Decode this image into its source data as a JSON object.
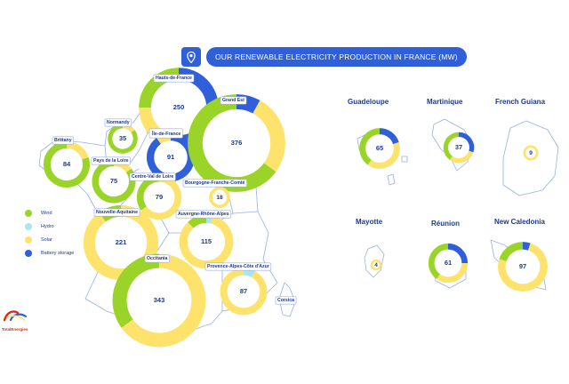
{
  "title": "OUR RENEWABLE ELECTRICITY PRODUCTION IN FRANCE (MW)",
  "icons": {
    "title": "map-pin-icon",
    "brand": "totalenergies-logo"
  },
  "brand": "TotalEnergies",
  "colors": {
    "Wind": "#9bd428",
    "Hydro": "#a7e7ef",
    "Solar": "#fde36c",
    "Battery storage": "#2f5fd9",
    "accent": "#2f5fd9",
    "map_outline": "#9aaee8",
    "label_text": "#1e3a8a"
  },
  "legend": [
    {
      "label": "Wind",
      "color": "#9bd428"
    },
    {
      "label": "Hydro",
      "color": "#a7e7ef"
    },
    {
      "label": "Solar",
      "color": "#fde36c"
    },
    {
      "label": "Battery storage",
      "color": "#2f5fd9"
    }
  ],
  "chart_data": {
    "type": "pie",
    "title": "OUR RENEWABLE ELECTRICITY PRODUCTION IN FRANCE (MW)",
    "series_names": [
      "Wind",
      "Hydro",
      "Solar",
      "Battery storage"
    ],
    "regions": [
      {
        "name": "Hauts-de-France",
        "total": 250,
        "shares": {
          "Wind": 0.25,
          "Solar": 0.25,
          "Battery storage": 0.5
        }
      },
      {
        "name": "Normandy",
        "total": 35,
        "shares": {
          "Wind": 0.85,
          "Solar": 0.15
        }
      },
      {
        "name": "Brittany",
        "total": 84,
        "shares": {
          "Wind": 0.8,
          "Solar": 0.2
        }
      },
      {
        "name": "Île-de-France",
        "total": 91,
        "shares": {
          "Solar": 0.1,
          "Battery storage": 0.9
        }
      },
      {
        "name": "Grand Est",
        "total": 376,
        "shares": {
          "Battery storage": 0.08,
          "Solar": 0.27,
          "Wind": 0.65
        }
      },
      {
        "name": "Pays de la Loire",
        "total": 75,
        "shares": {
          "Wind": 0.85,
          "Solar": 0.15
        }
      },
      {
        "name": "Centre-Val de Loire",
        "total": 79,
        "shares": {
          "Wind": 0.35,
          "Solar": 0.65
        }
      },
      {
        "name": "Bourgogne-Franche-Comté",
        "total": 18,
        "shares": {
          "Solar": 1.0
        }
      },
      {
        "name": "Nouvelle-Aquitaine",
        "total": 221,
        "shares": {
          "Wind": 0.1,
          "Solar": 0.9
        }
      },
      {
        "name": "Auvergne-Rhône-Alpes",
        "total": 115,
        "shares": {
          "Hydro": 0.04,
          "Solar": 0.84,
          "Wind": 0.12
        }
      },
      {
        "name": "Occitania",
        "total": 343,
        "shares": {
          "Wind": 0.35,
          "Solar": 0.65
        }
      },
      {
        "name": "Provence-Alpes-Côte d'Azur",
        "total": 87,
        "shares": {
          "Hydro": 0.08,
          "Solar": 0.92
        }
      },
      {
        "name": "Corsica",
        "total": null,
        "shares": {}
      },
      {
        "name": "Guadeloupe",
        "total": 65,
        "shares": {
          "Battery storage": 0.2,
          "Solar": 0.4,
          "Wind": 0.4
        }
      },
      {
        "name": "Martinique",
        "total": 37,
        "shares": {
          "Battery storage": 0.3,
          "Solar": 0.3,
          "Wind": 0.4
        }
      },
      {
        "name": "French Guiana",
        "total": 9,
        "shares": {
          "Solar": 1.0
        }
      },
      {
        "name": "Mayotte",
        "total": 4,
        "shares": {
          "Solar": 1.0
        }
      },
      {
        "name": "Réunion",
        "total": 61,
        "shares": {
          "Battery storage": 0.25,
          "Solar": 0.35,
          "Wind": 0.4
        }
      },
      {
        "name": "New Caledonia",
        "total": 97,
        "shares": {
          "Battery storage": 0.05,
          "Solar": 0.75,
          "Wind": 0.2
        }
      }
    ]
  }
}
